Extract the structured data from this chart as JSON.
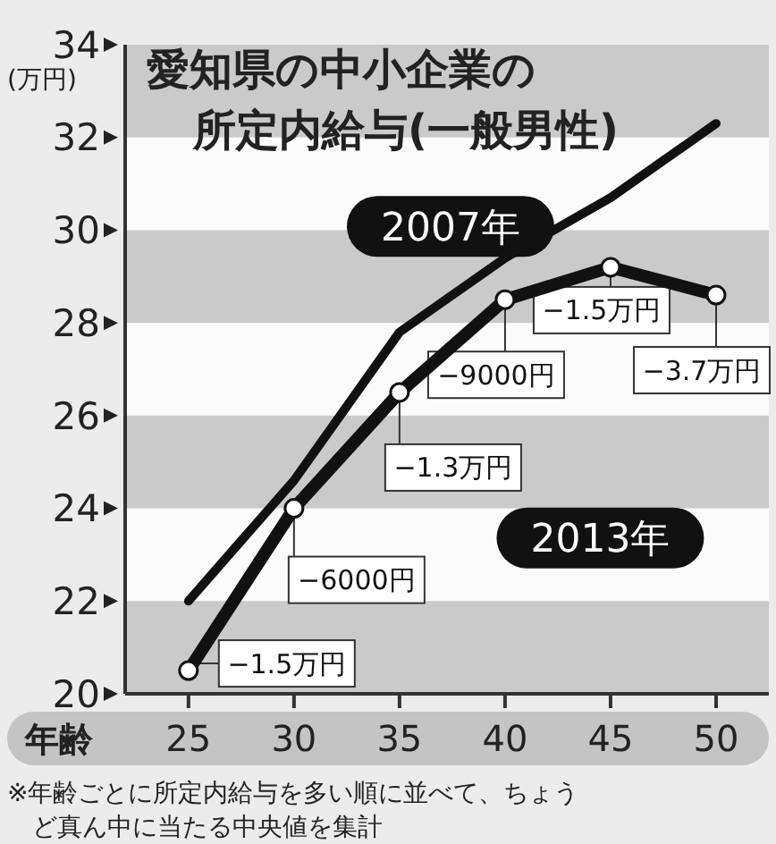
{
  "chart_data": {
    "type": "line",
    "title": "愛知県の中小企業の所定内給与(一般男性)",
    "xlabel": "年齢",
    "ylabel": "(万円)",
    "x": [
      25,
      30,
      35,
      40,
      45,
      50
    ],
    "series": [
      {
        "name": "2007年",
        "color": "#111111",
        "values": [
          22.0,
          24.6,
          27.8,
          29.4,
          30.7,
          32.3
        ],
        "marker": "none"
      },
      {
        "name": "2013年",
        "color": "#111111",
        "values": [
          20.5,
          24.0,
          26.5,
          28.5,
          29.2,
          28.6
        ],
        "marker": "circle"
      }
    ],
    "xlim": [
      22,
      52.5
    ],
    "xticks": [
      25,
      30,
      35,
      40,
      45,
      50
    ],
    "ylim": [
      20,
      34
    ],
    "yticks": [
      20,
      22,
      24,
      26,
      28,
      30,
      32,
      34
    ],
    "grid": false,
    "annotations": [
      {
        "text": "−1.5万円",
        "x": 25,
        "y": 20.5
      },
      {
        "text": "−6000円",
        "x": 30,
        "y": 24.0
      },
      {
        "text": "−1.3万円",
        "x": 35,
        "y": 26.5
      },
      {
        "text": "−9000円",
        "x": 40,
        "y": 28.5
      },
      {
        "text": "−1.5万円",
        "x": 45,
        "y": 29.2
      },
      {
        "text": "−3.7万円",
        "x": 50,
        "y": 28.6
      },
      "※年齢ごとに所定内給与を多い順に並べて、ちょうど真ん中に当たる中央値を集計"
    ]
  }
}
